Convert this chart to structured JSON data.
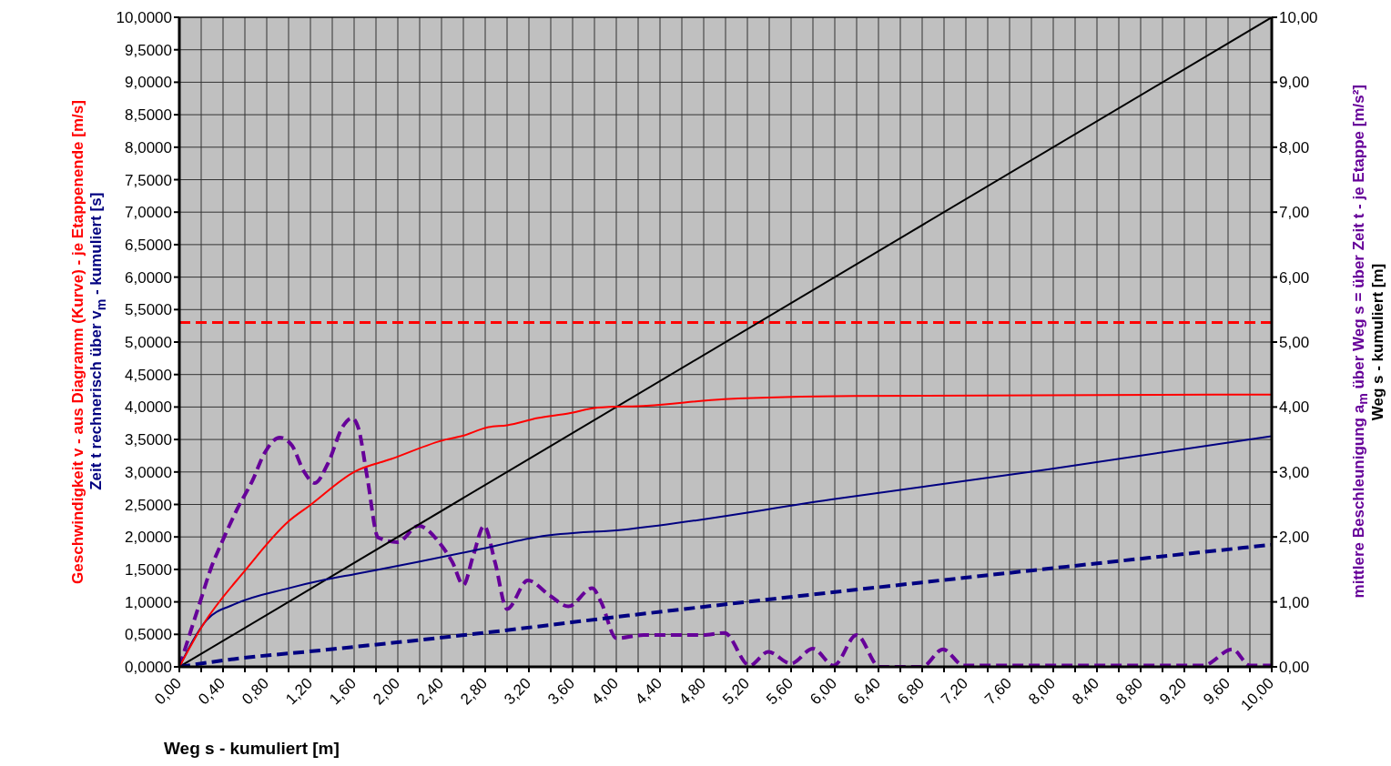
{
  "chart_data": {
    "type": "line",
    "xlabel": "Weg s - kumuliert [m]",
    "ylabel": "Geschwindigkeit v - aus Diagramm (Kurve) - je Etappenende [m/s]",
    "y2label": "mittlere Beschleunigung a$_{m}$ über Weg s = über Zeit t - je Etappe [m/s²]",
    "annotations": [
      "Zeit t rechnerisch über v$_{m}$ - kumuliert [s]",
      "Weg s - kumuliert [m]"
    ],
    "xlim": [
      0,
      10
    ],
    "ylim": [
      0,
      10
    ],
    "y2lim": [
      0,
      10
    ],
    "xticks": [
      {
        "value": 0,
        "label": "0,00"
      },
      {
        "value": 0.2,
        "label": null
      },
      {
        "value": 0.4,
        "label": "0,40"
      },
      {
        "value": 0.6,
        "label": null
      },
      {
        "value": 0.8,
        "label": "0,80"
      },
      {
        "value": 1,
        "label": null
      },
      {
        "value": 1.2,
        "label": "1,20"
      },
      {
        "value": 1.4,
        "label": null
      },
      {
        "value": 1.6,
        "label": "1,60"
      },
      {
        "value": 1.8,
        "label": null
      },
      {
        "value": 2,
        "label": "2,00"
      },
      {
        "value": 2.2,
        "label": null
      },
      {
        "value": 2.4,
        "label": "2,40"
      },
      {
        "value": 2.6,
        "label": null
      },
      {
        "value": 2.8,
        "label": "2,80"
      },
      {
        "value": 3,
        "label": null
      },
      {
        "value": 3.2,
        "label": "3,20"
      },
      {
        "value": 3.4,
        "label": null
      },
      {
        "value": 3.6,
        "label": "3,60"
      },
      {
        "value": 3.8,
        "label": null
      },
      {
        "value": 4,
        "label": "4,00"
      },
      {
        "value": 4.2,
        "label": null
      },
      {
        "value": 4.4,
        "label": "4,40"
      },
      {
        "value": 4.6,
        "label": null
      },
      {
        "value": 4.8,
        "label": "4,80"
      },
      {
        "value": 5,
        "label": null
      },
      {
        "value": 5.2,
        "label": "5,20"
      },
      {
        "value": 5.4,
        "label": null
      },
      {
        "value": 5.6,
        "label": "5,60"
      },
      {
        "value": 5.8,
        "label": null
      },
      {
        "value": 6,
        "label": "6,00"
      },
      {
        "value": 6.2,
        "label": null
      },
      {
        "value": 6.4,
        "label": "6,40"
      },
      {
        "value": 6.6,
        "label": null
      },
      {
        "value": 6.8,
        "label": "6,80"
      },
      {
        "value": 7,
        "label": null
      },
      {
        "value": 7.2,
        "label": "7,20"
      },
      {
        "value": 7.4,
        "label": null
      },
      {
        "value": 7.6,
        "label": "7,60"
      },
      {
        "value": 7.8,
        "label": null
      },
      {
        "value": 8,
        "label": "8,00"
      },
      {
        "value": 8.2,
        "label": null
      },
      {
        "value": 8.4,
        "label": "8,40"
      },
      {
        "value": 8.6,
        "label": null
      },
      {
        "value": 8.8,
        "label": "8,80"
      },
      {
        "value": 9,
        "label": null
      },
      {
        "value": 9.2,
        "label": "9,20"
      },
      {
        "value": 9.4,
        "label": null
      },
      {
        "value": 9.6,
        "label": "9,60"
      },
      {
        "value": 9.8,
        "label": null
      },
      {
        "value": 10,
        "label": "10,00"
      }
    ],
    "yticks": [
      {
        "value": 0,
        "label": "0,0000"
      },
      {
        "value": 0.5,
        "label": "0,5000"
      },
      {
        "value": 1,
        "label": "1,0000"
      },
      {
        "value": 1.5,
        "label": "1,5000"
      },
      {
        "value": 2,
        "label": "2,0000"
      },
      {
        "value": 2.5,
        "label": "2,5000"
      },
      {
        "value": 3,
        "label": "3,0000"
      },
      {
        "value": 3.5,
        "label": "3,5000"
      },
      {
        "value": 4,
        "label": "4,0000"
      },
      {
        "value": 4.5,
        "label": "4,5000"
      },
      {
        "value": 5,
        "label": "5,0000"
      },
      {
        "value": 5.5,
        "label": "5,5000"
      },
      {
        "value": 6,
        "label": "6,0000"
      },
      {
        "value": 6.5,
        "label": "6,5000"
      },
      {
        "value": 7,
        "label": "7,0000"
      },
      {
        "value": 7.5,
        "label": "7,5000"
      },
      {
        "value": 8,
        "label": "8,0000"
      },
      {
        "value": 8.5,
        "label": "8,5000"
      },
      {
        "value": 9,
        "label": "9,0000"
      },
      {
        "value": 9.5,
        "label": "9,5000"
      },
      {
        "value": 10,
        "label": "10,0000"
      }
    ],
    "y2ticks": [
      {
        "value": 0,
        "label": "0,00"
      },
      {
        "value": 1,
        "label": "1,00"
      },
      {
        "value": 2,
        "label": "2,00"
      },
      {
        "value": 3,
        "label": "3,00"
      },
      {
        "value": 4,
        "label": "4,00"
      },
      {
        "value": 5,
        "label": "5,00"
      },
      {
        "value": 6,
        "label": "6,00"
      },
      {
        "value": 7,
        "label": "7,00"
      },
      {
        "value": 8,
        "label": "8,00"
      },
      {
        "value": 9,
        "label": "9,00"
      },
      {
        "value": 10,
        "label": "10,00"
      }
    ],
    "grid": true,
    "marker": "none",
    "ref_lines": [
      {
        "axis": "y",
        "value": 5.3,
        "label": null,
        "color": "#ff0000",
        "line_style": "dashed"
      }
    ],
    "series": [
      {
        "color": "#ff0000",
        "line_style": "solid",
        "x": [
          0,
          0.21,
          0.61,
          1.0,
          1.19,
          1.61,
          1.94,
          2.44,
          2.58,
          2.83,
          3.0,
          3.28,
          3.56,
          3.83,
          4.28,
          4.99,
          6.18,
          9.6,
          10
        ],
        "values": [
          0,
          0.63,
          1.5,
          2.24,
          2.48,
          3.01,
          3.2,
          3.5,
          3.55,
          3.69,
          3.72,
          3.83,
          3.9,
          3.99,
          4.02,
          4.12,
          4.17,
          4.19,
          4.19
        ]
      },
      {
        "color": "#000080",
        "line_style": "solid",
        "x": [
          0,
          0.25,
          0.5,
          1.0,
          1.33,
          1.61,
          2.17,
          2.72,
          3.28,
          4.11,
          6.03,
          7.95,
          10
        ],
        "values": [
          0,
          0.72,
          0.96,
          1.21,
          1.34,
          1.43,
          1.61,
          1.8,
          2.0,
          2.12,
          2.59,
          3.04,
          3.55
        ]
      },
      {
        "color": "#000080",
        "line_style": "dashed",
        "x": [
          0,
          0.5,
          1.33,
          2.72,
          4.11,
          6.8,
          10
        ],
        "values": [
          0,
          0.12,
          0.26,
          0.51,
          0.79,
          1.3,
          1.88
        ]
      },
      {
        "color": "#000000",
        "line_style": "solid",
        "axis": "y2",
        "x": [
          0,
          10
        ],
        "values": [
          0,
          10
        ]
      },
      {
        "color": "#660099",
        "line_style": "dashed",
        "axis": "y2",
        "x": [
          0,
          0.19,
          0.29,
          0.39,
          0.53,
          0.67,
          0.78,
          0.92,
          1.03,
          1.14,
          1.24,
          1.36,
          1.5,
          1.58,
          1.64,
          1.72,
          1.82,
          2.0,
          2.19,
          2.39,
          2.5,
          2.6,
          2.69,
          2.79,
          2.89,
          3.0,
          3.19,
          3.39,
          3.56,
          3.78,
          3.86,
          4.0,
          4.25,
          4.78,
          4.99,
          5.22,
          5.39,
          5.6,
          5.8,
          5.99,
          6.2,
          6.41,
          6.8,
          6.99,
          7.18,
          9.37,
          9.64,
          9.8,
          10
        ],
        "values": [
          0,
          1.0,
          1.52,
          1.92,
          2.43,
          2.87,
          3.29,
          3.53,
          3.41,
          3.01,
          2.83,
          3.13,
          3.71,
          3.83,
          3.67,
          2.92,
          1.99,
          1.92,
          2.17,
          1.89,
          1.61,
          1.26,
          1.71,
          2.17,
          1.61,
          0.89,
          1.33,
          1.1,
          0.93,
          1.21,
          1.0,
          0.44,
          0.49,
          0.49,
          0.52,
          0.02,
          0.23,
          0.05,
          0.28,
          0.02,
          0.49,
          0,
          0,
          0.27,
          0.02,
          0.02,
          0.27,
          0.02,
          0.02
        ]
      }
    ]
  }
}
